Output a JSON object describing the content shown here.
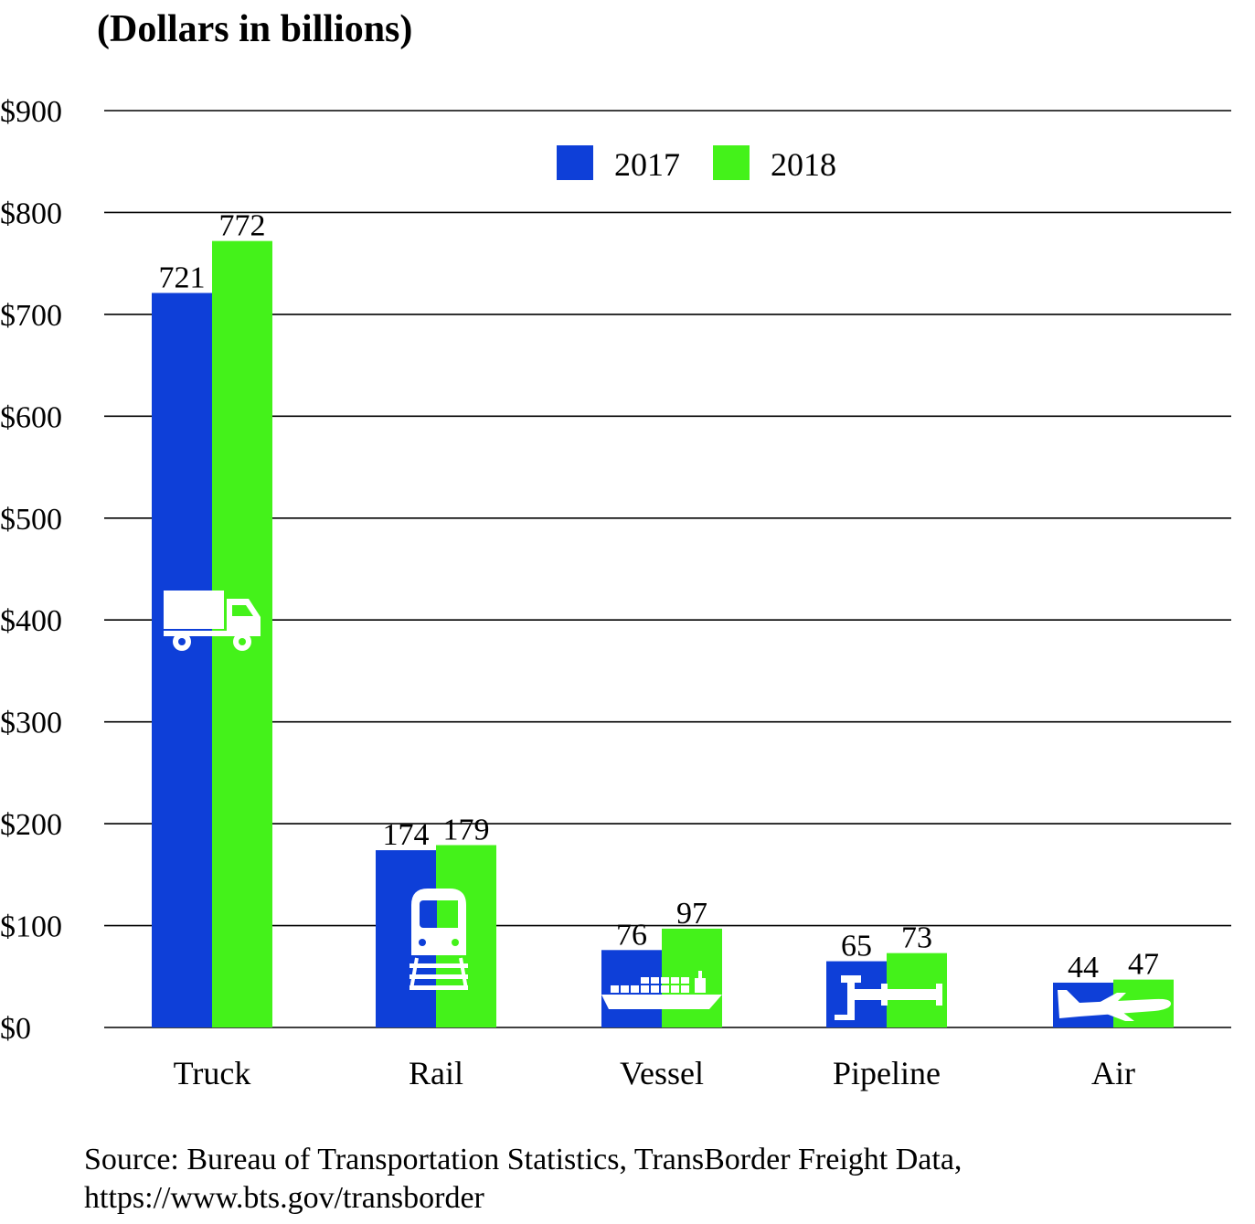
{
  "title": "(Dollars in billions)",
  "source_line1": "Source: Bureau of Transportation Statistics, TransBorder Freight Data,",
  "source_line2": "https://www.bts.gov/transborder",
  "colors": {
    "series_2017": "#0e3fd8",
    "series_2018": "#44f21a",
    "grid": "#000000",
    "icon": "#ffffff"
  },
  "chart_data": {
    "type": "bar",
    "title": "(Dollars in billions)",
    "xlabel": "",
    "ylabel": "",
    "categories": [
      "Truck",
      "Rail",
      "Vessel",
      "Pipeline",
      "Air"
    ],
    "category_icons": [
      "truck-icon",
      "train-icon",
      "ship-icon",
      "pipeline-icon",
      "airplane-icon"
    ],
    "series": [
      {
        "name": "2017",
        "values": [
          721,
          174,
          76,
          65,
          44
        ]
      },
      {
        "name": "2018",
        "values": [
          772,
          179,
          97,
          73,
          47
        ]
      }
    ],
    "ylim": [
      0,
      900
    ],
    "yticks": [
      0,
      100,
      200,
      300,
      400,
      500,
      600,
      700,
      800,
      900
    ],
    "ytick_labels": [
      "$0",
      "$100",
      "$200",
      "$300",
      "$400",
      "$500",
      "$600",
      "$700",
      "$800",
      "$900"
    ],
    "grid": true,
    "legend": {
      "position": "top-center",
      "entries": [
        "2017",
        "2018"
      ]
    },
    "data_labels": true
  }
}
